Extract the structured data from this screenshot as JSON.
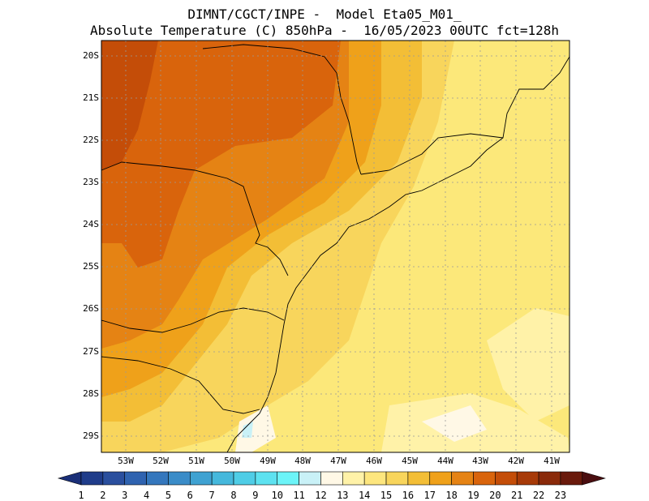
{
  "title": {
    "line1": "DIMNT/CGCT/INPE -  Model Eta05_M01_",
    "line2": "Absolute Temperature (C) 850hPa -  16/05/2023 00UTC fct=128h"
  },
  "map": {
    "latitude_labels": [
      "20S",
      "21S",
      "22S",
      "23S",
      "24S",
      "25S",
      "26S",
      "27S",
      "28S",
      "29S"
    ],
    "longitude_labels": [
      "53W",
      "52W",
      "51W",
      "50W",
      "49W",
      "48W",
      "47W",
      "46W",
      "45W",
      "44W",
      "43W",
      "42W",
      "41W"
    ]
  },
  "colorbar": {
    "labels": [
      "1",
      "2",
      "3",
      "4",
      "5",
      "6",
      "7",
      "8",
      "9",
      "10",
      "11",
      "12",
      "13",
      "14",
      "15",
      "16",
      "17",
      "18",
      "19",
      "20",
      "21",
      "22",
      "23"
    ],
    "colors": [
      "#1f3c8a",
      "#2a4f9e",
      "#2f63b0",
      "#3477bd",
      "#3a8cc8",
      "#3fa2d2",
      "#45b8dc",
      "#4fcde6",
      "#5de2f0",
      "#6cf4f8",
      "#c9f1f7",
      "#fff8e6",
      "#fff2a8",
      "#fde67e",
      "#f8d55c",
      "#f3be36",
      "#efa11a",
      "#e58314",
      "#d9640c",
      "#c44d08",
      "#a73a08",
      "#8a2a0a",
      "#6a1a0c"
    ],
    "left_end_color": "#1a2f78",
    "right_end_color": "#4a0e10"
  }
}
